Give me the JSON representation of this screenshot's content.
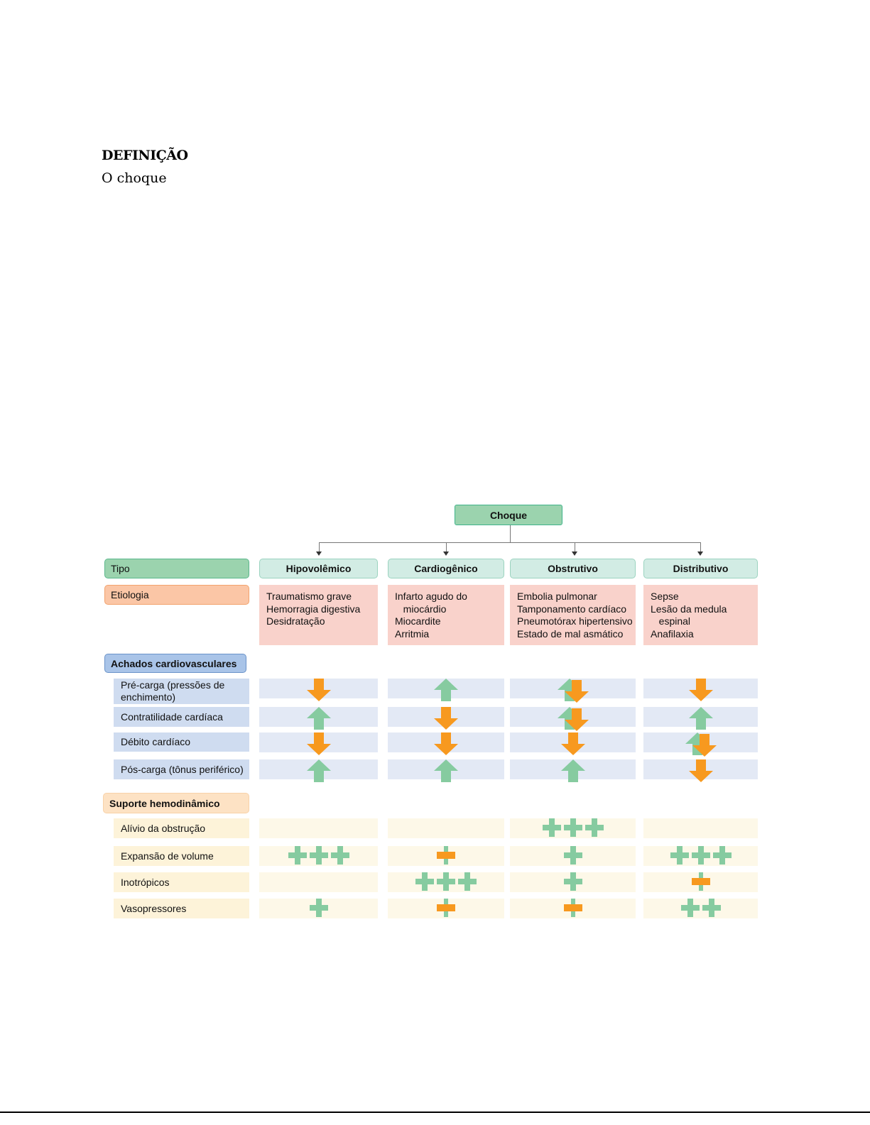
{
  "heading": "DEFINIÇÃO",
  "paragraph": "O choque",
  "diagram": {
    "root": "Choque",
    "type_label": "Tipo",
    "etiology_label": "Etiologia",
    "findings_label": "Achados cardiovasculares",
    "support_label": "Suporte hemodinâmico",
    "types": [
      "Hipovolêmico",
      "Cardiogênico",
      "Obstrutivo",
      "Distributivo"
    ],
    "etiologies": [
      "Traumatismo grave\nHemorragia digestiva\nDesidratação",
      "Infarto agudo do\n   miocárdio\nMiocardite\nArritmia",
      "Embolia pulmonar\nTamponamento cardíaco\nPneumotórax hipertensivo\nEstado de mal asmático",
      "Sepse\nLesão da medula\n   espinal\nAnafilaxia"
    ],
    "findings": [
      {
        "label": "Pré-carga (pressões de enchimento)",
        "values": [
          "down",
          "up",
          "up-down",
          "down"
        ]
      },
      {
        "label": "Contratilidade cardíaca",
        "values": [
          "up",
          "down",
          "up-down",
          "up"
        ]
      },
      {
        "label": "Débito cardíaco",
        "values": [
          "down",
          "down",
          "down",
          "up-down"
        ]
      },
      {
        "label": "Pós-carga (tônus periférico)",
        "values": [
          "up",
          "up",
          "up",
          "down"
        ]
      }
    ],
    "support": [
      {
        "label": "Alívio da obstrução",
        "values": [
          0,
          0,
          3,
          0
        ]
      },
      {
        "label": "Expansão de volume",
        "values": [
          3,
          "±",
          1,
          3
        ]
      },
      {
        "label": "Inotrópicos",
        "values": [
          0,
          3,
          1,
          "±"
        ]
      },
      {
        "label": "Vasopressores",
        "values": [
          1,
          "±",
          "±",
          2
        ]
      }
    ],
    "colors": {
      "up": "#86cba0",
      "down": "#f7991f",
      "type_bg": "#d2ece4",
      "tipo": "#9bd3ae",
      "etiologia": "#fbc6a6",
      "achados": "#a9c4e8",
      "suporte": "#fde2c4",
      "etio_bg": "#f9d2cb",
      "find_bg": "#e3e9f5",
      "find_label": "#cfdcf0",
      "sup_bg": "#fdf8e8",
      "sup_label": "#fdf3d9"
    }
  }
}
